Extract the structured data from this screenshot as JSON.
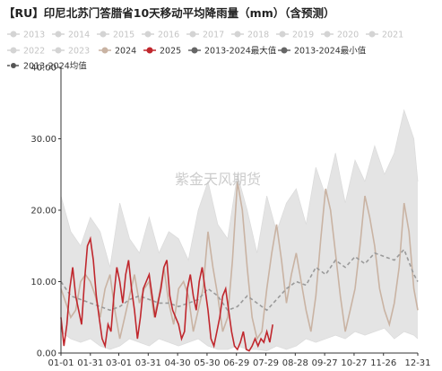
{
  "chart_data": {
    "type": "line",
    "title": "【RU】印尼北苏门答腊省10天移动平均降雨量（mm）（含预测）",
    "watermark": "紫金天风期货",
    "xlabel": "",
    "ylabel": "",
    "ylim": [
      0,
      40
    ],
    "yticks": [
      "0.00",
      "10.00",
      "20.00",
      "30.00",
      "40.00"
    ],
    "xticks": [
      "01-01",
      "01-31",
      "03-01",
      "03-31",
      "04-30",
      "05-30",
      "06-29",
      "07-29",
      "08-28",
      "09-27",
      "10-27",
      "11-26",
      "12-31"
    ],
    "legend": {
      "placement": "top",
      "items": [
        {
          "label": "2013",
          "color": "#cfcfcf",
          "active": false
        },
        {
          "label": "2014",
          "color": "#cfcfcf",
          "active": false
        },
        {
          "label": "2015",
          "color": "#cfcfcf",
          "active": false
        },
        {
          "label": "2016",
          "color": "#cfcfcf",
          "active": false
        },
        {
          "label": "2017",
          "color": "#cfcfcf",
          "active": false
        },
        {
          "label": "2018",
          "color": "#cfcfcf",
          "active": false
        },
        {
          "label": "2019",
          "color": "#cfcfcf",
          "active": false
        },
        {
          "label": "2020",
          "color": "#cfcfcf",
          "active": false
        },
        {
          "label": "2021",
          "color": "#cfcfcf",
          "active": false
        },
        {
          "label": "2022",
          "color": "#cfcfcf",
          "active": false
        },
        {
          "label": "2023",
          "color": "#cfcfcf",
          "active": false
        },
        {
          "label": "2024",
          "color": "#c9b3a3",
          "active": true
        },
        {
          "label": "2025",
          "color": "#c0272d",
          "active": true
        },
        {
          "label": "2013-2024最大值",
          "color": "#666666",
          "active": true
        },
        {
          "label": "2013-2024最小值",
          "color": "#666666",
          "active": true
        },
        {
          "label": "2013-2024均值",
          "color": "#555555",
          "active": true
        }
      ]
    },
    "colors": {
      "range_fill": "#e4e4e4",
      "series_2024": "#c9b3a3",
      "series_2025": "#c0272d",
      "series_mean": "#9a9a9a",
      "axis": "#333333"
    },
    "series": [
      {
        "name": "2024",
        "x": [
          1,
          6,
          11,
          16,
          21,
          26,
          31,
          36,
          41,
          46,
          51,
          56,
          61,
          66,
          71,
          76,
          81,
          86,
          91,
          96,
          101,
          106,
          111,
          116,
          121,
          126,
          131,
          136,
          141,
          146,
          151,
          156,
          161,
          166,
          171,
          176,
          181,
          186,
          191,
          196,
          201,
          206,
          211,
          216,
          221,
          226,
          231,
          236,
          241,
          246,
          251,
          256,
          261,
          266,
          271,
          276,
          281,
          286,
          291,
          296,
          301,
          306,
          311,
          316,
          321,
          326,
          331,
          336,
          341,
          346,
          351,
          356,
          361,
          365
        ],
        "values": [
          9,
          7,
          5,
          6,
          10,
          11,
          10,
          8,
          5,
          9,
          11,
          6,
          2,
          5,
          8,
          11,
          7,
          9,
          10,
          5,
          8,
          12,
          7,
          4,
          9,
          10,
          8,
          3,
          6,
          9,
          17,
          12,
          8,
          3,
          5,
          13,
          24,
          20,
          12,
          5,
          2,
          3,
          9,
          14,
          18,
          13,
          7,
          11,
          14,
          10,
          6,
          3,
          8,
          16,
          23,
          20,
          14,
          8,
          3,
          6,
          9,
          15,
          22,
          19,
          15,
          9,
          6,
          4,
          7,
          12,
          21,
          17,
          9,
          6
        ]
      },
      {
        "name": "2025",
        "x": [
          1,
          4,
          7,
          10,
          13,
          16,
          19,
          22,
          25,
          28,
          31,
          34,
          37,
          40,
          43,
          46,
          49,
          52,
          55,
          58,
          61,
          64,
          67,
          70,
          73,
          76,
          79,
          82,
          85,
          88,
          91,
          94,
          97,
          100,
          103,
          106,
          109,
          112,
          115,
          118,
          121,
          124,
          127,
          130,
          133,
          136,
          139,
          142,
          145,
          148,
          151,
          154,
          157,
          160,
          163,
          166,
          169,
          172,
          175,
          178,
          181,
          184,
          187,
          190,
          193,
          196,
          199,
          202,
          205,
          208,
          211,
          214,
          217
        ],
        "values": [
          5,
          1,
          4,
          9,
          12,
          8,
          6,
          4,
          10,
          15,
          16,
          13,
          8,
          5,
          2,
          1,
          4,
          3,
          8,
          12,
          10,
          7,
          11,
          13,
          9,
          6,
          2,
          5,
          9,
          10,
          11,
          8,
          5,
          7,
          9,
          12,
          13,
          8,
          6,
          5,
          4,
          2,
          3,
          9,
          11,
          8,
          6,
          10,
          12,
          9,
          6,
          2,
          1,
          3,
          5,
          8,
          9,
          6,
          3,
          1,
          0.5,
          1.5,
          3,
          0.5,
          0.3,
          1,
          2,
          1,
          2,
          1.5,
          3,
          1.5,
          4
        ]
      },
      {
        "name": "2013-2024均值",
        "x": [
          1,
          11,
          21,
          31,
          41,
          51,
          61,
          71,
          81,
          91,
          101,
          111,
          121,
          131,
          141,
          151,
          161,
          171,
          181,
          191,
          201,
          211,
          221,
          231,
          241,
          251,
          261,
          271,
          281,
          291,
          301,
          311,
          321,
          331,
          341,
          351,
          361,
          365
        ],
        "values": [
          10,
          8,
          7.5,
          7,
          6.5,
          6,
          6.5,
          7.5,
          8,
          7.5,
          7,
          7,
          6.5,
          7,
          7.5,
          9,
          8,
          6,
          6.5,
          8,
          7,
          6,
          7.5,
          9,
          10,
          9.5,
          12,
          11,
          13,
          12,
          13.5,
          12.5,
          14,
          13.5,
          13,
          14.5,
          11,
          10
        ]
      },
      {
        "name": "2013-2024最大值",
        "x": [
          1,
          11,
          21,
          31,
          41,
          51,
          61,
          71,
          81,
          91,
          101,
          111,
          121,
          131,
          141,
          151,
          161,
          171,
          181,
          191,
          201,
          211,
          221,
          231,
          241,
          251,
          261,
          271,
          281,
          291,
          301,
          311,
          321,
          331,
          341,
          351,
          356,
          361,
          365
        ],
        "values": [
          22,
          17,
          15,
          19,
          17,
          12,
          21,
          16,
          14,
          19,
          14,
          17,
          16,
          13,
          20,
          24,
          18,
          16,
          25,
          20,
          14,
          22,
          17,
          21,
          23,
          18,
          26,
          22,
          28,
          21,
          27,
          24,
          29,
          25,
          28,
          34,
          32,
          30,
          24
        ]
      },
      {
        "name": "2013-2024最小值",
        "x": [
          1,
          11,
          21,
          31,
          41,
          51,
          61,
          71,
          81,
          91,
          101,
          111,
          121,
          131,
          141,
          151,
          161,
          171,
          181,
          191,
          201,
          211,
          221,
          231,
          241,
          251,
          261,
          271,
          281,
          291,
          301,
          311,
          321,
          331,
          341,
          351,
          361,
          365
        ],
        "values": [
          3,
          2,
          1.5,
          2,
          1,
          0.5,
          1,
          2,
          1.5,
          1,
          2,
          1.5,
          1,
          1.5,
          2,
          1,
          0.5,
          0.5,
          1,
          0.5,
          0.5,
          0.3,
          1,
          0.5,
          1,
          2,
          1.5,
          2,
          2.5,
          2,
          3,
          2.5,
          3,
          3.5,
          2,
          3,
          2.5,
          2
        ]
      }
    ]
  }
}
